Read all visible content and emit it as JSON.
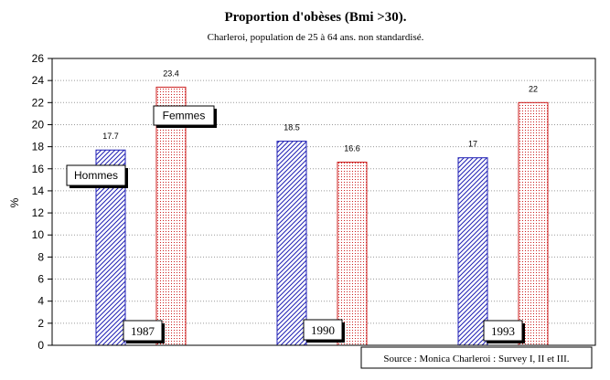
{
  "chart_data": {
    "type": "bar",
    "title": "Proportion d'obèses  (Bmi >30).",
    "subtitle": "Charleroi, population de 25 à 64 ans. non standardisé.",
    "ylabel": "%",
    "xlabel": "",
    "ylim": [
      0,
      26
    ],
    "yticks": [
      0,
      2,
      4,
      6,
      8,
      10,
      12,
      14,
      16,
      18,
      20,
      22,
      24,
      26
    ],
    "grid": true,
    "categories": [
      "1987",
      "1990",
      "1993"
    ],
    "series": [
      {
        "name": "Hommes",
        "values": [
          17.7,
          18.5,
          17
        ],
        "labels": [
          "17.7",
          "18.5",
          "17"
        ],
        "color": "#1f1fb4",
        "pattern": "diagonal-hatch"
      },
      {
        "name": "Femmes",
        "values": [
          23.4,
          16.6,
          22
        ],
        "labels": [
          "23.4",
          "16.6",
          "22"
        ],
        "color": "#cc1f1f",
        "pattern": "dotted"
      }
    ],
    "source": "Source : Monica Charleroi : Survey I, II et III."
  }
}
